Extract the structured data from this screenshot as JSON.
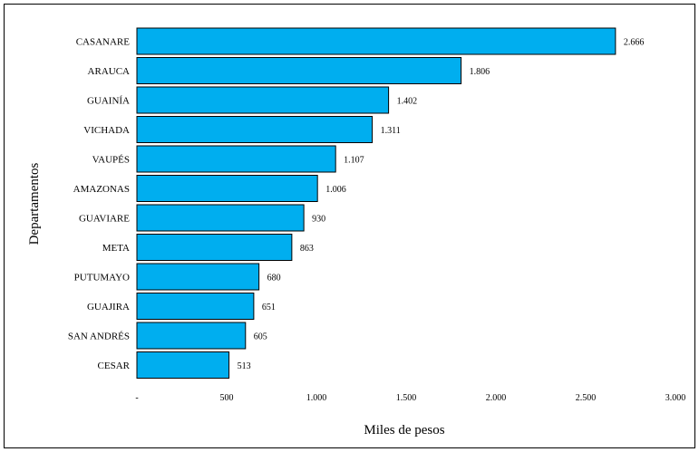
{
  "chart_data": {
    "type": "bar",
    "orientation": "horizontal",
    "categories": [
      "CASANARE",
      "ARAUCA",
      "GUAINÍA",
      "VICHADA",
      "VAUPÉS",
      "AMAZONAS",
      "GUAVIARE",
      "META",
      "PUTUMAYO",
      "GUAJIRA",
      "SAN ANDRÉS",
      "CESAR"
    ],
    "values": [
      2666,
      1806,
      1402,
      1311,
      1107,
      1006,
      930,
      863,
      680,
      651,
      605,
      513
    ],
    "value_labels": [
      "2.666",
      "1.806",
      "1.402",
      "1.311",
      "1.107",
      "1.006",
      "930",
      "863",
      "680",
      "651",
      "605",
      "513"
    ],
    "xlabel": "Miles de pesos",
    "ylabel": "Departamentos",
    "xlim": [
      0,
      3000
    ],
    "xticks": [
      0,
      500,
      1000,
      1500,
      2000,
      2500,
      3000
    ],
    "xtick_labels": [
      "-",
      "500",
      "1.000",
      "1.500",
      "2.000",
      "2.500",
      "3.000"
    ],
    "bar_color": "#00AEEF",
    "grid": false,
    "legend": "none"
  }
}
